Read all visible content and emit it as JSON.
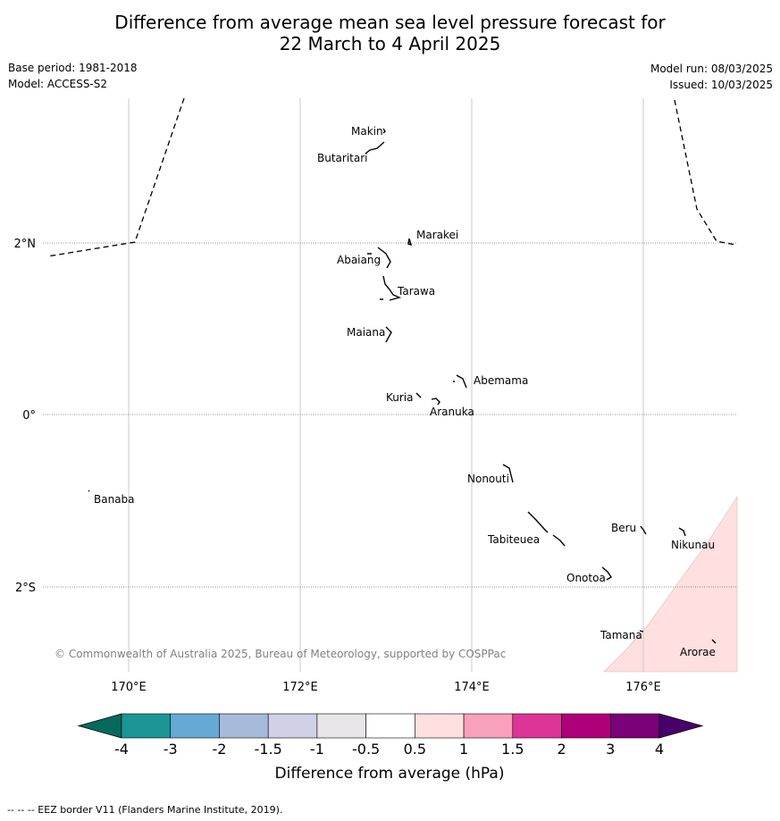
{
  "title_line1": "Difference from average mean sea level pressure forecast for",
  "title_line2": "22 March to 4 April 2025",
  "base_period": "Base period: 1981-2018",
  "model": "Model: ACCESS-S2",
  "model_run": "Model run: 08/03/2025",
  "issued": "Issued: 10/03/2025",
  "copyright": "© Commonwealth of Australia 2025, Bureau of Meteorology, supported by COSPPac",
  "footer": "--  --  -- EEZ border V11 (Flanders Marine Institute, 2019).",
  "map": {
    "lon_ticks": [
      "170°E",
      "172°E",
      "174°E",
      "176°E"
    ],
    "lat_ticks": [
      "2°N",
      "0°",
      "2°S"
    ],
    "islands": [
      "Makin",
      "Butaritari",
      "Marakei",
      "Abaiang",
      "Tarawa",
      "Maiana",
      "Abemama",
      "Kuria",
      "Aranuka",
      "Nonouti",
      "Banaba",
      "Beru",
      "Nikunau",
      "Tabiteuea",
      "Onotoa",
      "Tamana",
      "Arorae"
    ]
  },
  "legend": {
    "label": "Difference from average (hPa)",
    "ticks": [
      "-4",
      "-3",
      "-2",
      "-1.5",
      "-1",
      "-0.5",
      "0.5",
      "1",
      "1.5",
      "2",
      "3",
      "4"
    ],
    "colors": [
      "#1b9595",
      "#66a9d4",
      "#a6badc",
      "#d0d0e6",
      "#e8e6e8",
      "#ffffff",
      "#ffdfdf",
      "#f9a0ba",
      "#dd3597",
      "#ae0179",
      "#7a0177"
    ],
    "low_color": "#056a5d",
    "high_color": "#4a006a",
    "positive_anomaly_color": "#ffdfdf"
  }
}
